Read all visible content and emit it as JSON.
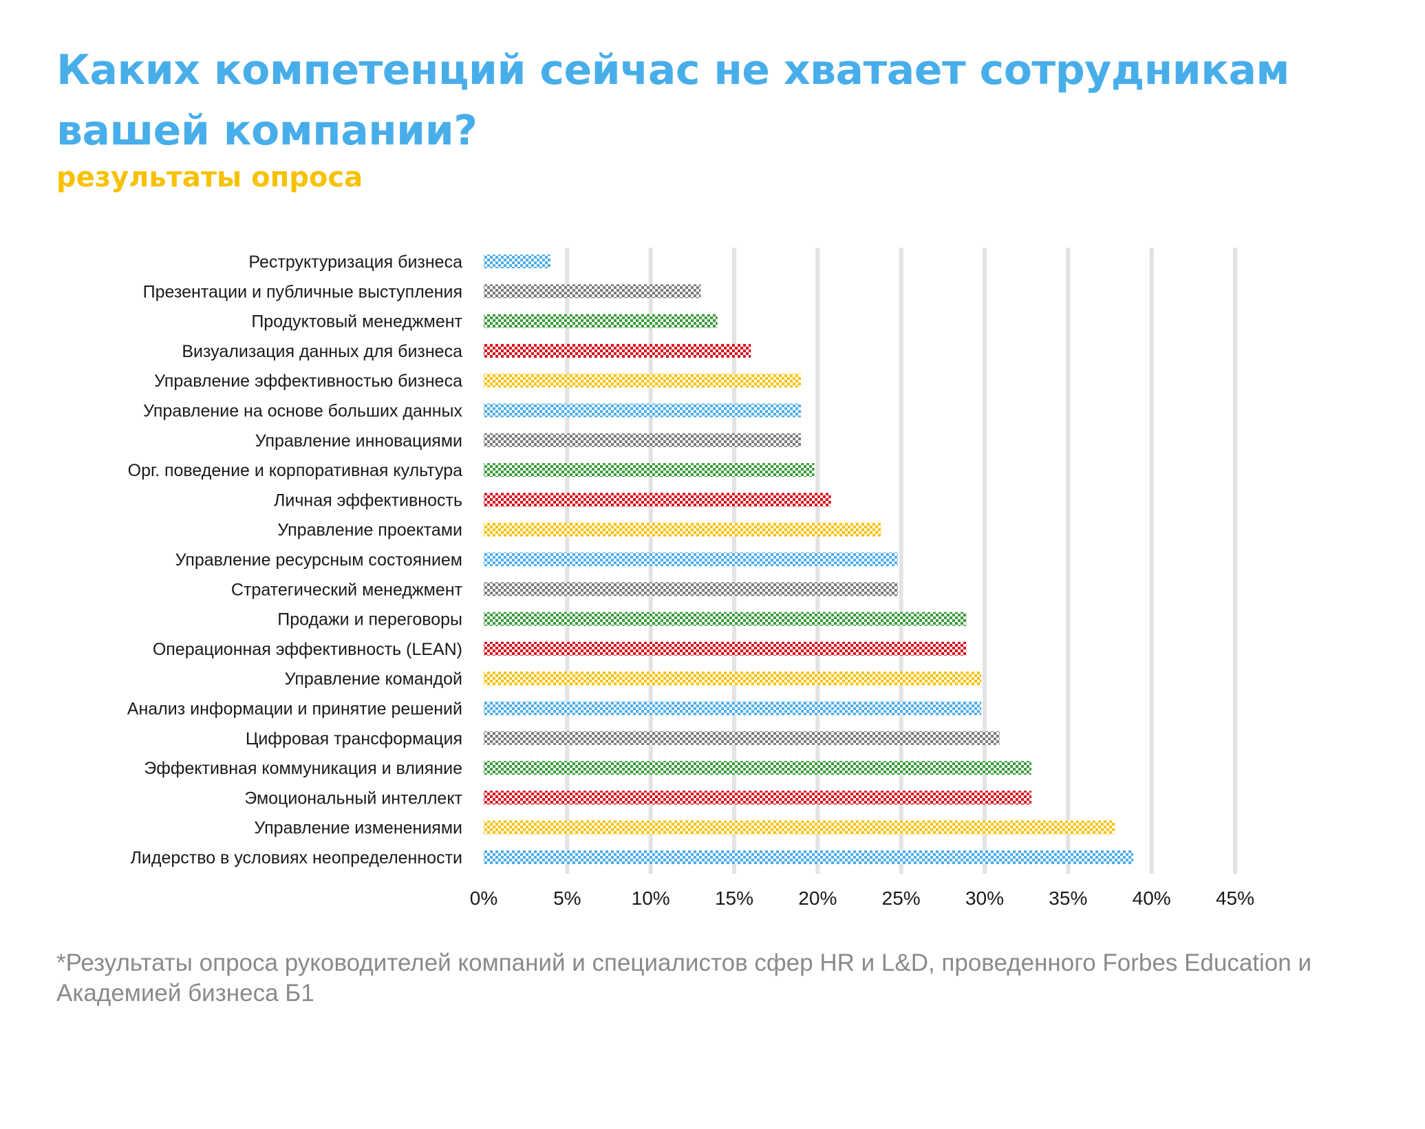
{
  "header": {
    "title": "Каких компетенций сейчас не хватает сотрудникам вашей компании?",
    "subtitle": "результаты опроса"
  },
  "footnote": "*Результаты опроса руководителей компаний и специалистов сфер HR и L&D, проведенного Forbes Education и Академией бизнеса Б1",
  "colors": {
    "title": "#48AEEA",
    "subtitle": "#F7C100",
    "blue": "#4DAEEB",
    "gray": "#7B7B7B",
    "green": "#3A9B3C",
    "red": "#D9101C",
    "yellow": "#F7C100",
    "grid": "#E3E3E3"
  },
  "chart_data": {
    "type": "bar",
    "orientation": "horizontal",
    "title": "",
    "xlabel": "",
    "ylabel": "",
    "xlim": [
      0,
      45
    ],
    "x_ticks": [
      "0%",
      "5%",
      "10%",
      "15%",
      "20%",
      "25%",
      "30%",
      "35%",
      "40%",
      "45%"
    ],
    "grid": "vertical",
    "bar_pattern": "checkered",
    "categories": [
      "Реструктуризация бизнеса",
      "Презентации и публичные выступления",
      "Продуктовый менеджмент",
      "Визуализация данных для бизнеса",
      "Управление эффективностью бизнеса",
      "Управление на основе больших данных",
      "Управление инновациями",
      "Орг. поведение и корпоративная культура",
      "Личная эффективность",
      "Управление проектами",
      "Управление ресурсным состоянием",
      "Стратегический менеджмент",
      "Продажи и переговоры",
      "Операционная эффективность (LEAN)",
      "Управление командой",
      "Анализ информации и принятие решений",
      "Цифровая трансформация",
      "Эффективная коммуникация и влияние",
      "Эмоциональный интеллект",
      "Управление изменениями",
      "Лидерство в условиях неопределенности"
    ],
    "values": [
      4,
      13,
      14,
      16,
      19,
      19,
      19,
      19.8,
      20.8,
      23.8,
      24.8,
      24.8,
      28.9,
      28.9,
      29.8,
      29.8,
      30.9,
      32.8,
      32.8,
      37.8,
      38.9
    ],
    "bar_colors": [
      "blue",
      "gray",
      "green",
      "red",
      "yellow",
      "blue",
      "gray",
      "green",
      "red",
      "yellow",
      "blue",
      "gray",
      "green",
      "red",
      "yellow",
      "blue",
      "gray",
      "green",
      "red",
      "yellow",
      "blue"
    ]
  }
}
